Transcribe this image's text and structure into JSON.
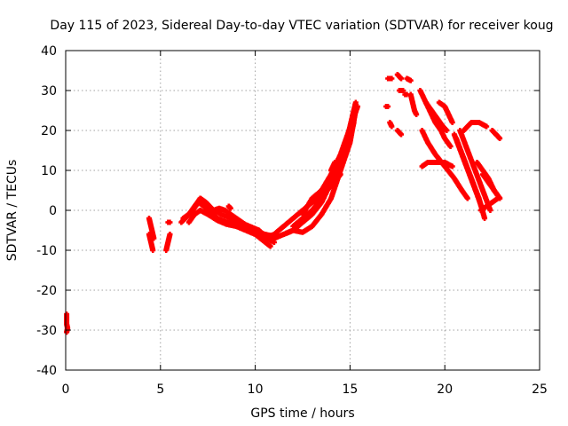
{
  "chart_data": {
    "type": "scatter",
    "title": "Day 115 of 2023, Sidereal Day-to-day VTEC variation (SDTVAR) for receiver koug",
    "xlabel": "GPS time / hours",
    "ylabel": "SDTVAR / TECUs",
    "xlim": [
      0,
      25
    ],
    "ylim": [
      -40,
      40
    ],
    "xticks": [
      0,
      5,
      10,
      15,
      20,
      25
    ],
    "yticks": [
      -40,
      -30,
      -20,
      -10,
      0,
      10,
      20,
      30,
      40
    ],
    "grid": true,
    "marker": "plus",
    "color": "#ff0000",
    "segments": [
      {
        "x": [
          0.05,
          0.05,
          0.1,
          0.05
        ],
        "y": [
          -26,
          -28.5,
          -29.5,
          -30.5
        ]
      },
      {
        "x": [
          4.4,
          4.45,
          4.5,
          4.55,
          4.6,
          4.65
        ],
        "y": [
          -2,
          -3,
          -4,
          -5,
          -6,
          -7
        ]
      },
      {
        "x": [
          4.4,
          4.45,
          4.5,
          4.55,
          4.6
        ],
        "y": [
          -6,
          -7,
          -8,
          -9,
          -10
        ]
      },
      {
        "x": [
          5.3,
          5.35,
          5.4,
          5.45,
          5.5
        ],
        "y": [
          -10,
          -9,
          -8,
          -7,
          -6
        ]
      },
      {
        "x": [
          5.4,
          5.5
        ],
        "y": [
          -3,
          -3
        ]
      },
      {
        "x": [
          6.1,
          6.4,
          6.7,
          7.0,
          7.3,
          7.6,
          8.0,
          8.5,
          9.0,
          9.5,
          10.0,
          10.5,
          11.0
        ],
        "y": [
          -3,
          -1.5,
          0,
          2,
          1,
          -0.5,
          -2,
          -3,
          -3.5,
          -4.5,
          -5,
          -6,
          -6.5
        ]
      },
      {
        "x": [
          6.2,
          6.5,
          6.8,
          7.1,
          7.4,
          7.8,
          8.2,
          8.7,
          9.2,
          9.7,
          10.2,
          10.6,
          11.0
        ],
        "y": [
          -2,
          -1,
          1,
          3,
          2,
          0,
          -1,
          -2,
          -3,
          -4,
          -5,
          -7,
          -8
        ]
      },
      {
        "x": [
          6.5,
          6.8,
          7.1,
          7.5,
          8.0,
          8.5,
          9.0,
          9.5,
          10.0,
          10.4,
          10.8
        ],
        "y": [
          -3,
          -1,
          0,
          -1,
          -2.5,
          -3.5,
          -4,
          -5,
          -6,
          -7.5,
          -9
        ]
      },
      {
        "x": [
          7.5,
          7.8,
          8.1,
          8.4,
          8.7,
          9.0,
          9.3,
          9.6,
          9.9,
          10.2,
          10.5
        ],
        "y": [
          -1,
          0,
          0.5,
          0,
          -1,
          -2,
          -3,
          -4,
          -5,
          -6,
          -7
        ]
      },
      {
        "x": [
          8.6,
          8.7
        ],
        "y": [
          1,
          0.5
        ]
      },
      {
        "x": [
          10.5,
          11.0,
          11.5,
          12.0,
          12.5,
          13.0,
          13.5,
          14.0,
          14.5
        ],
        "y": [
          -7,
          -6,
          -4,
          -2,
          0,
          2,
          4,
          6,
          9
        ]
      },
      {
        "x": [
          11.0,
          11.5,
          12.0,
          12.5,
          13.0,
          13.5,
          14.0,
          14.5,
          15.0,
          15.2
        ],
        "y": [
          -7,
          -6,
          -5,
          -3,
          -1,
          2,
          7,
          12,
          18,
          22
        ]
      },
      {
        "x": [
          11.5,
          12.0,
          12.5,
          13.0,
          13.5,
          14.0,
          14.5,
          15.0,
          15.3
        ],
        "y": [
          -6,
          -5,
          -5.5,
          -4,
          -1,
          3,
          10,
          17,
          25
        ]
      },
      {
        "x": [
          12.0,
          12.5,
          13.0,
          13.5,
          14.0,
          14.5,
          14.9,
          15.3
        ],
        "y": [
          -4,
          -2,
          0,
          3,
          7,
          13,
          19,
          27
        ]
      },
      {
        "x": [
          12.5,
          13.0,
          13.5,
          14.0,
          14.5,
          14.8,
          15.1,
          15.4
        ],
        "y": [
          -1,
          3,
          5,
          9,
          14,
          18,
          22,
          26
        ]
      },
      {
        "x": [
          14.0,
          14.1,
          14.2
        ],
        "y": [
          10,
          11,
          12
        ]
      },
      {
        "x": [
          16.9,
          17.0
        ],
        "y": [
          26,
          26
        ]
      },
      {
        "x": [
          17.1,
          17.2
        ],
        "y": [
          22,
          21
        ]
      },
      {
        "x": [
          17.0,
          17.2
        ],
        "y": [
          33,
          33
        ]
      },
      {
        "x": [
          17.5,
          17.7
        ],
        "y": [
          20,
          19
        ]
      },
      {
        "x": [
          17.5,
          17.7
        ],
        "y": [
          34,
          33
        ]
      },
      {
        "x": [
          17.6,
          17.8
        ],
        "y": [
          30,
          30
        ]
      },
      {
        "x": [
          17.9,
          18.0
        ],
        "y": [
          29,
          29
        ]
      },
      {
        "x": [
          18.0,
          18.2
        ],
        "y": [
          33,
          32.5
        ]
      },
      {
        "x": [
          18.2,
          18.3,
          18.4,
          18.5
        ],
        "y": [
          29,
          27,
          25,
          24
        ]
      },
      {
        "x": [
          18.7,
          18.9,
          19.2,
          19.5,
          19.8,
          20.0,
          20.3
        ],
        "y": [
          30,
          28,
          25,
          22,
          20,
          18,
          16
        ]
      },
      {
        "x": [
          19.0,
          19.3,
          19.6,
          19.9,
          20.1
        ],
        "y": [
          27,
          25,
          23,
          21,
          20
        ]
      },
      {
        "x": [
          19.7,
          20.0,
          20.2,
          20.4
        ],
        "y": [
          27,
          26,
          24,
          22
        ]
      },
      {
        "x": [
          18.8,
          19.1,
          19.5,
          20.0,
          20.5,
          20.9,
          21.2
        ],
        "y": [
          20,
          17,
          14,
          11,
          8,
          5,
          3
        ]
      },
      {
        "x": [
          18.8,
          19.1,
          19.5,
          20.0,
          20.4
        ],
        "y": [
          11,
          12,
          12,
          12,
          11
        ]
      },
      {
        "x": [
          20.5,
          20.9,
          21.3,
          21.7,
          22.0
        ],
        "y": [
          19,
          14,
          9,
          4,
          0
        ]
      },
      {
        "x": [
          20.8,
          21.2,
          21.6,
          22.0,
          22.4
        ],
        "y": [
          20,
          15,
          10,
          5,
          0
        ]
      },
      {
        "x": [
          20.6,
          21.0,
          21.4,
          21.8,
          22.1
        ],
        "y": [
          18,
          13,
          8,
          3,
          -2
        ]
      },
      {
        "x": [
          21.0,
          21.4,
          21.8,
          22.2
        ],
        "y": [
          20,
          22,
          22,
          21
        ]
      },
      {
        "x": [
          21.7,
          22.0,
          22.3,
          22.6,
          22.9
        ],
        "y": [
          12,
          10,
          8,
          5,
          3
        ]
      },
      {
        "x": [
          22.0,
          22.3,
          22.6,
          22.9
        ],
        "y": [
          9,
          7,
          5,
          3
        ]
      },
      {
        "x": [
          22.5,
          22.7,
          22.9
        ],
        "y": [
          20,
          19,
          18
        ]
      },
      {
        "x": [
          21.9,
          22.2,
          22.5,
          22.8
        ],
        "y": [
          0,
          1,
          2,
          3
        ]
      }
    ]
  }
}
